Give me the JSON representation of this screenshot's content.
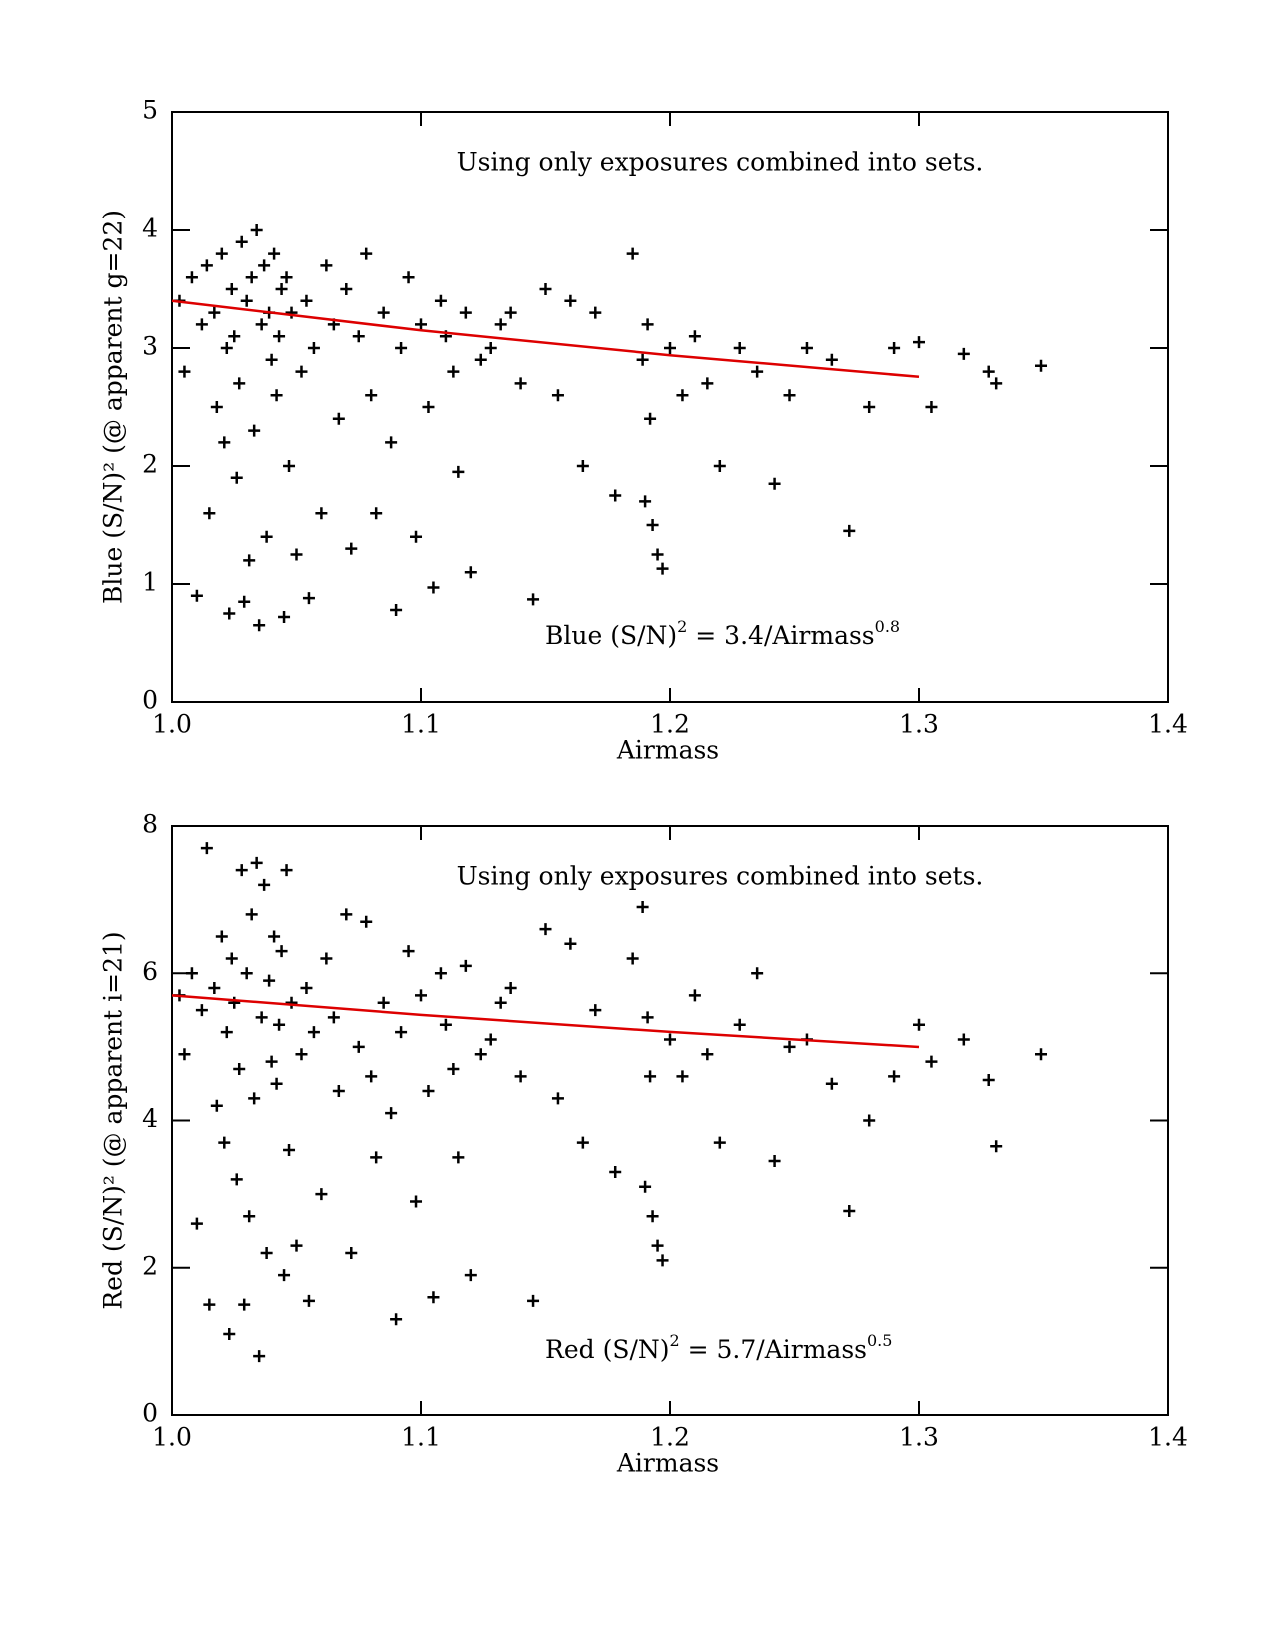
{
  "chart_data": [
    {
      "type": "scatter",
      "xlabel": "Airmass",
      "ylabel": "Blue (S/N)² (@ apparent g=22)",
      "annotation": "Using only exposures combined into sets.",
      "formula": [
        "Blue (S/N)",
        "2",
        " = 3.4/Airmass",
        "0.8"
      ],
      "color": "#000000",
      "x": [
        1.003,
        1.005,
        1.008,
        1.01,
        1.012,
        1.014,
        1.015,
        1.017,
        1.018,
        1.02,
        1.021,
        1.022,
        1.023,
        1.024,
        1.025,
        1.026,
        1.027,
        1.028,
        1.029,
        1.03,
        1.031,
        1.032,
        1.033,
        1.034,
        1.035,
        1.036,
        1.037,
        1.038,
        1.039,
        1.04,
        1.041,
        1.042,
        1.043,
        1.044,
        1.045,
        1.046,
        1.047,
        1.048,
        1.05,
        1.052,
        1.054,
        1.055,
        1.057,
        1.06,
        1.062,
        1.065,
        1.067,
        1.07,
        1.072,
        1.075,
        1.078,
        1.08,
        1.082,
        1.085,
        1.088,
        1.09,
        1.092,
        1.095,
        1.098,
        1.1,
        1.103,
        1.105,
        1.108,
        1.11,
        1.113,
        1.115,
        1.118,
        1.12,
        1.124,
        1.128,
        1.132,
        1.136,
        1.14,
        1.145,
        1.15,
        1.155,
        1.16,
        1.165,
        1.17,
        1.178,
        1.185,
        1.189,
        1.19,
        1.191,
        1.192,
        1.193,
        1.195,
        1.197,
        1.2,
        1.205,
        1.21,
        1.215,
        1.22,
        1.228,
        1.235,
        1.242,
        1.248,
        1.255,
        1.265,
        1.272,
        1.28,
        1.29,
        1.3,
        1.305,
        1.318,
        1.328,
        1.331,
        1.349
      ],
      "values": [
        3.4,
        2.8,
        3.6,
        0.9,
        3.2,
        3.7,
        1.6,
        3.3,
        2.5,
        3.8,
        2.2,
        3.0,
        0.75,
        3.5,
        3.1,
        1.9,
        2.7,
        3.9,
        0.85,
        3.4,
        1.2,
        3.6,
        2.3,
        4.0,
        0.65,
        3.2,
        3.7,
        1.4,
        3.3,
        2.9,
        3.8,
        2.6,
        3.1,
        3.5,
        0.72,
        3.6,
        2.0,
        3.3,
        1.25,
        2.8,
        3.4,
        0.88,
        3.0,
        1.6,
        3.7,
        3.2,
        2.4,
        3.5,
        1.3,
        3.1,
        3.8,
        2.6,
        1.6,
        3.3,
        2.2,
        0.78,
        3.0,
        3.6,
        1.4,
        3.2,
        2.5,
        0.97,
        3.4,
        3.1,
        2.8,
        1.95,
        3.3,
        1.1,
        2.9,
        3.0,
        3.2,
        3.3,
        2.7,
        0.87,
        3.5,
        2.6,
        3.4,
        2.0,
        3.3,
        1.75,
        3.8,
        2.9,
        1.7,
        3.2,
        2.4,
        1.5,
        1.25,
        1.13,
        3.0,
        2.6,
        3.1,
        2.7,
        2.0,
        3.0,
        2.8,
        1.85,
        2.6,
        3.0,
        2.9,
        1.45,
        2.5,
        3.0,
        3.05,
        2.5,
        2.95,
        2.8,
        2.7,
        2.85
      ],
      "fit": {
        "color": "#dd0000",
        "x": [
          1.0,
          1.1,
          1.2,
          1.3
        ],
        "values": [
          3.4,
          3.15,
          2.939,
          2.756
        ]
      },
      "xlim": [
        1.0,
        1.4
      ],
      "xticks": [
        {
          "value": 1.0,
          "label": "1.0"
        },
        1.1,
        1.2,
        1.3,
        1.4
      ],
      "ylim": [
        0,
        5
      ],
      "yticks": [
        0,
        1,
        2,
        3,
        4,
        5
      ]
    },
    {
      "type": "scatter",
      "xlabel": "Airmass",
      "ylabel": "Red (S/N)² (@ apparent i=21)",
      "annotation": "Using only exposures combined into sets.",
      "formula": [
        "Red (S/N)",
        "2",
        " = 5.7/Airmass",
        "0.5"
      ],
      "color": "#000000",
      "x": [
        1.003,
        1.005,
        1.008,
        1.01,
        1.012,
        1.014,
        1.015,
        1.017,
        1.018,
        1.02,
        1.021,
        1.022,
        1.023,
        1.024,
        1.025,
        1.026,
        1.027,
        1.028,
        1.029,
        1.03,
        1.031,
        1.032,
        1.033,
        1.034,
        1.035,
        1.036,
        1.037,
        1.038,
        1.039,
        1.04,
        1.041,
        1.042,
        1.043,
        1.044,
        1.045,
        1.046,
        1.047,
        1.048,
        1.05,
        1.052,
        1.054,
        1.055,
        1.057,
        1.06,
        1.062,
        1.065,
        1.067,
        1.07,
        1.072,
        1.075,
        1.078,
        1.08,
        1.082,
        1.085,
        1.088,
        1.09,
        1.092,
        1.095,
        1.098,
        1.1,
        1.103,
        1.105,
        1.108,
        1.11,
        1.113,
        1.115,
        1.118,
        1.12,
        1.124,
        1.128,
        1.132,
        1.136,
        1.14,
        1.145,
        1.15,
        1.155,
        1.16,
        1.165,
        1.17,
        1.178,
        1.185,
        1.189,
        1.19,
        1.191,
        1.192,
        1.193,
        1.195,
        1.197,
        1.2,
        1.205,
        1.21,
        1.215,
        1.22,
        1.228,
        1.235,
        1.242,
        1.248,
        1.255,
        1.265,
        1.272,
        1.28,
        1.29,
        1.3,
        1.305,
        1.318,
        1.328,
        1.331,
        1.349
      ],
      "values": [
        5.7,
        4.9,
        6.0,
        2.6,
        5.5,
        7.7,
        1.5,
        5.8,
        4.2,
        6.5,
        3.7,
        5.2,
        1.1,
        6.2,
        5.6,
        3.2,
        4.7,
        7.4,
        1.5,
        6.0,
        2.7,
        6.8,
        4.3,
        7.5,
        0.8,
        5.4,
        7.2,
        2.2,
        5.9,
        4.8,
        6.5,
        4.5,
        5.3,
        6.3,
        1.9,
        7.4,
        3.6,
        5.6,
        2.3,
        4.9,
        5.8,
        1.55,
        5.2,
        3.0,
        6.2,
        5.4,
        4.4,
        6.8,
        2.2,
        5.0,
        6.7,
        4.6,
        3.5,
        5.6,
        4.1,
        1.3,
        5.2,
        6.3,
        2.9,
        5.7,
        4.4,
        1.6,
        6.0,
        5.3,
        4.7,
        3.5,
        6.1,
        1.9,
        4.9,
        5.1,
        5.6,
        5.8,
        4.6,
        1.55,
        6.6,
        4.3,
        6.4,
        3.7,
        5.5,
        3.3,
        6.2,
        6.9,
        3.1,
        5.4,
        4.6,
        2.7,
        2.3,
        2.1,
        5.1,
        4.6,
        5.7,
        4.9,
        3.7,
        5.3,
        6.0,
        3.45,
        5.0,
        5.1,
        4.5,
        2.77,
        4.0,
        4.6,
        5.3,
        4.8,
        5.1,
        4.55,
        3.65,
        4.9
      ],
      "fit": {
        "color": "#dd0000",
        "x": [
          1.0,
          1.1,
          1.2,
          1.3
        ],
        "values": [
          5.7,
          5.435,
          5.203,
          4.999
        ]
      },
      "xlim": [
        1.0,
        1.4
      ],
      "xticks": [
        {
          "value": 1.0,
          "label": "1.0"
        },
        1.1,
        1.2,
        1.3,
        1.4
      ],
      "ylim": [
        0,
        8
      ],
      "yticks": [
        0,
        2,
        4,
        6,
        8
      ]
    }
  ]
}
